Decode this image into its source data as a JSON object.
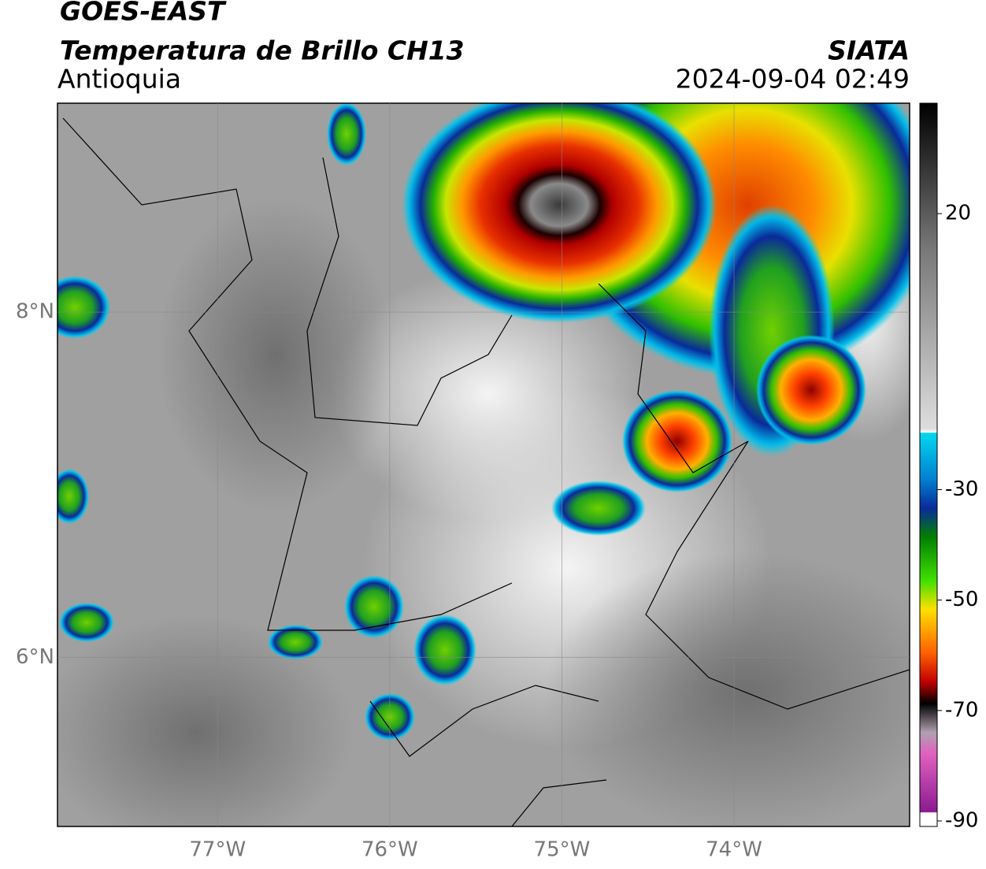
{
  "header": {
    "title": "GOES-EAST",
    "subtitle": "Temperatura de Brillo CH13",
    "region": "Antioquia",
    "source": "SIATA",
    "datetime": "2024-09-04 02:49"
  },
  "map": {
    "xlim": [
      -77.93,
      -72.98
    ],
    "ylim": [
      5.02,
      9.21
    ],
    "xticks": [
      {
        "value": -77,
        "label": "77°W"
      },
      {
        "value": -76,
        "label": "76°W"
      },
      {
        "value": -75,
        "label": "75°W"
      },
      {
        "value": -74,
        "label": "74°W"
      }
    ],
    "yticks": [
      {
        "value": 6,
        "label": "6°N"
      },
      {
        "value": 8,
        "label": "8°N"
      }
    ],
    "grid": true
  },
  "colorbar": {
    "lim": [
      -91,
      40
    ],
    "ticks": [
      20,
      -30,
      -50,
      -70,
      -90
    ]
  }
}
